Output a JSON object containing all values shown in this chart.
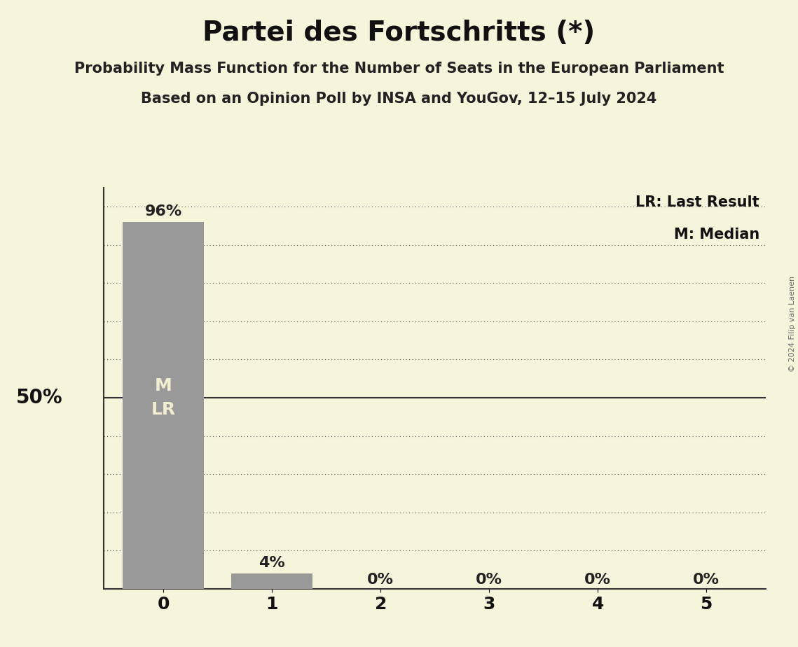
{
  "title": "Partei des Fortschritts (*)",
  "subtitle1": "Probability Mass Function for the Number of Seats in the European Parliament",
  "subtitle2": "Based on an Opinion Poll by INSA and YouGov, 12–15 July 2024",
  "copyright": "© 2024 Filip van Laenen",
  "categories": [
    0,
    1,
    2,
    3,
    4,
    5
  ],
  "values": [
    0.96,
    0.04,
    0.0,
    0.0,
    0.0,
    0.0
  ],
  "bar_color": "#999999",
  "background_color": "#F5F5DC",
  "bar_labels": [
    "96%",
    "4%",
    "0%",
    "0%",
    "0%",
    "0%"
  ],
  "ylabel_50": "50%",
  "legend_lr": "LR: Last Result",
  "legend_m": "M: Median",
  "median": 0,
  "last_result": 0,
  "ylim": [
    0,
    1.05
  ],
  "yticks": [
    0.0,
    0.1,
    0.2,
    0.3,
    0.4,
    0.5,
    0.6,
    0.7,
    0.8,
    0.9,
    1.0
  ],
  "title_fontsize": 28,
  "subtitle_fontsize": 15,
  "axis_tick_fontsize": 18,
  "bar_label_fontsize": 16,
  "annotation_fontsize": 15,
  "ylabel_fontsize": 20,
  "copyright_fontsize": 8,
  "ml_label_fontsize": 18
}
